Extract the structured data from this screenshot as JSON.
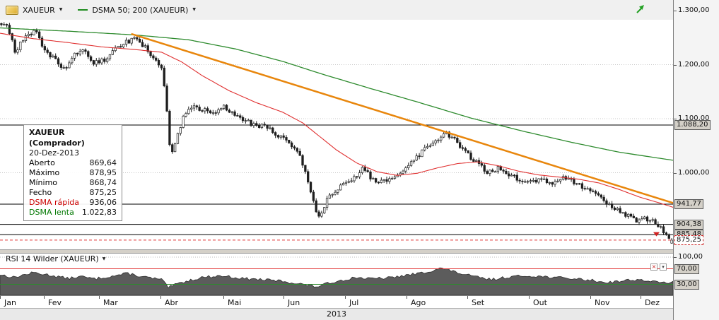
{
  "toolbar": {
    "symbol": "XAUEUR",
    "indicator": "DSMA 50; 200 (XAUEUR)"
  },
  "tooltip": {
    "title": "XAUEUR (Comprador)",
    "date": "20-Dez-2013",
    "rows": [
      {
        "label": "Aberto",
        "value": "869,64",
        "color": "#000000"
      },
      {
        "label": "Máximo",
        "value": "878,95",
        "color": "#000000"
      },
      {
        "label": "Mínimo",
        "value": "868,74",
        "color": "#000000"
      },
      {
        "label": "Fecho",
        "value": "875,25",
        "color": "#000000"
      },
      {
        "label": "DSMA rápida",
        "value": "936,06",
        "color": "#cc0000"
      },
      {
        "label": "DSMA lenta",
        "value": "1.022,83",
        "color": "#007700"
      }
    ]
  },
  "rsi_panel": {
    "label": "RSI 14 Wilder (XAUEUR)"
  },
  "x_axis": {
    "year": "2013"
  },
  "chart_data": {
    "type": "candlestick",
    "symbol": "XAUEUR",
    "title": "XAUEUR daily candles with DSMA 50/200, descending trendline and RSI 14 Wilder, year 2013",
    "candle_count": 248,
    "last_candle": {
      "open": 869.64,
      "high": 878.95,
      "low": 868.74,
      "close": 875.25
    },
    "dsma_fast_last": 936.06,
    "dsma_slow_last": 1022.83,
    "y_ticks": [
      {
        "label": "1.300,00",
        "value": 1300
      },
      {
        "label": "1.200,00",
        "value": 1200
      },
      {
        "label": "1.100,00",
        "value": 1100
      },
      {
        "label": "1.000,00",
        "value": 1000
      }
    ],
    "level_lines": [
      {
        "label": "1.088,20",
        "value": 1088.2,
        "style": "solid-black"
      },
      {
        "label": "941,77",
        "value": 941.77,
        "style": "solid-black"
      },
      {
        "label": "904,38",
        "value": 904.38,
        "style": "solid-black"
      },
      {
        "label": "885,48",
        "value": 885.48,
        "style": "solid-black"
      },
      {
        "label": "875,25",
        "value": 875.25,
        "style": "dashed-red"
      }
    ],
    "price_path": [
      [
        0.0,
        1276
      ],
      [
        0.01,
        1272
      ],
      [
        0.021,
        1220
      ],
      [
        0.032,
        1248
      ],
      [
        0.05,
        1264
      ],
      [
        0.063,
        1232
      ],
      [
        0.079,
        1209
      ],
      [
        0.095,
        1190
      ],
      [
        0.11,
        1222
      ],
      [
        0.121,
        1228
      ],
      [
        0.137,
        1203
      ],
      [
        0.153,
        1208
      ],
      [
        0.168,
        1225
      ],
      [
        0.184,
        1240
      ],
      [
        0.2,
        1247
      ],
      [
        0.21,
        1238
      ],
      [
        0.226,
        1216
      ],
      [
        0.24,
        1196
      ],
      [
        0.247,
        1110
      ],
      [
        0.253,
        1026
      ],
      [
        0.261,
        1064
      ],
      [
        0.272,
        1104
      ],
      [
        0.284,
        1123
      ],
      [
        0.3,
        1117
      ],
      [
        0.316,
        1113
      ],
      [
        0.332,
        1121
      ],
      [
        0.347,
        1108
      ],
      [
        0.363,
        1097
      ],
      [
        0.379,
        1085
      ],
      [
        0.395,
        1088
      ],
      [
        0.411,
        1069
      ],
      [
        0.426,
        1058
      ],
      [
        0.442,
        1040
      ],
      [
        0.455,
        994
      ],
      [
        0.465,
        948
      ],
      [
        0.474,
        916
      ],
      [
        0.484,
        946
      ],
      [
        0.497,
        966
      ],
      [
        0.511,
        977
      ],
      [
        0.526,
        992
      ],
      [
        0.539,
        1006
      ],
      [
        0.553,
        990
      ],
      [
        0.568,
        982
      ],
      [
        0.584,
        990
      ],
      [
        0.6,
        1006
      ],
      [
        0.616,
        1022
      ],
      [
        0.632,
        1044
      ],
      [
        0.647,
        1060
      ],
      [
        0.661,
        1073
      ],
      [
        0.674,
        1064
      ],
      [
        0.686,
        1046
      ],
      [
        0.7,
        1029
      ],
      [
        0.714,
        1012
      ],
      [
        0.726,
        999
      ],
      [
        0.742,
        1008
      ],
      [
        0.758,
        995
      ],
      [
        0.774,
        986
      ],
      [
        0.789,
        982
      ],
      [
        0.805,
        990
      ],
      [
        0.821,
        982
      ],
      [
        0.837,
        990
      ],
      [
        0.853,
        982
      ],
      [
        0.868,
        973
      ],
      [
        0.884,
        964
      ],
      [
        0.9,
        947
      ],
      [
        0.916,
        934
      ],
      [
        0.932,
        921
      ],
      [
        0.947,
        912
      ],
      [
        0.96,
        917
      ],
      [
        0.974,
        908
      ],
      [
        0.984,
        898
      ],
      [
        0.995,
        884
      ],
      [
        1.0,
        875
      ]
    ],
    "sma_fast": [
      [
        0.0,
        1258
      ],
      [
        0.05,
        1248
      ],
      [
        0.1,
        1241
      ],
      [
        0.15,
        1233
      ],
      [
        0.2,
        1228
      ],
      [
        0.24,
        1223
      ],
      [
        0.27,
        1205
      ],
      [
        0.3,
        1180
      ],
      [
        0.34,
        1152
      ],
      [
        0.38,
        1130
      ],
      [
        0.42,
        1112
      ],
      [
        0.45,
        1092
      ],
      [
        0.48,
        1062
      ],
      [
        0.5,
        1042
      ],
      [
        0.53,
        1018
      ],
      [
        0.56,
        1002
      ],
      [
        0.59,
        995
      ],
      [
        0.62,
        999
      ],
      [
        0.65,
        1009
      ],
      [
        0.68,
        1017
      ],
      [
        0.71,
        1020
      ],
      [
        0.74,
        1013
      ],
      [
        0.77,
        1003
      ],
      [
        0.8,
        996
      ],
      [
        0.83,
        992
      ],
      [
        0.86,
        988
      ],
      [
        0.89,
        981
      ],
      [
        0.92,
        969
      ],
      [
        0.95,
        955
      ],
      [
        0.98,
        944
      ],
      [
        1.0,
        936
      ]
    ],
    "sma_slow": [
      [
        0.0,
        1268
      ],
      [
        0.1,
        1262
      ],
      [
        0.2,
        1255
      ],
      [
        0.28,
        1246
      ],
      [
        0.35,
        1229
      ],
      [
        0.42,
        1206
      ],
      [
        0.48,
        1182
      ],
      [
        0.55,
        1156
      ],
      [
        0.62,
        1131
      ],
      [
        0.7,
        1101
      ],
      [
        0.78,
        1076
      ],
      [
        0.85,
        1056
      ],
      [
        0.92,
        1038
      ],
      [
        1.0,
        1023
      ]
    ],
    "trendline": {
      "from": [
        0.195,
        1257
      ],
      "to": [
        1.0,
        944
      ]
    },
    "sell_marker_price": 890,
    "rsi": {
      "overbought": 70,
      "oversold": 30,
      "ticks": [
        {
          "label": "100,00",
          "value": 100,
          "boxed": false
        },
        {
          "label": "70,00",
          "value": 70,
          "boxed": true
        },
        {
          "label": "30,00",
          "value": 30,
          "boxed": true
        }
      ],
      "path": [
        [
          0.0,
          55
        ],
        [
          0.02,
          48
        ],
        [
          0.05,
          60
        ],
        [
          0.08,
          52
        ],
        [
          0.1,
          45
        ],
        [
          0.12,
          50
        ],
        [
          0.14,
          44
        ],
        [
          0.17,
          52
        ],
        [
          0.19,
          58
        ],
        [
          0.21,
          50
        ],
        [
          0.24,
          42
        ],
        [
          0.25,
          22
        ],
        [
          0.27,
          35
        ],
        [
          0.3,
          48
        ],
        [
          0.33,
          52
        ],
        [
          0.36,
          45
        ],
        [
          0.39,
          42
        ],
        [
          0.42,
          38
        ],
        [
          0.45,
          30
        ],
        [
          0.47,
          24
        ],
        [
          0.5,
          38
        ],
        [
          0.53,
          48
        ],
        [
          0.55,
          44
        ],
        [
          0.58,
          47
        ],
        [
          0.6,
          52
        ],
        [
          0.63,
          60
        ],
        [
          0.655,
          72
        ],
        [
          0.67,
          65
        ],
        [
          0.69,
          55
        ],
        [
          0.71,
          48
        ],
        [
          0.73,
          42
        ],
        [
          0.76,
          50
        ],
        [
          0.79,
          52
        ],
        [
          0.82,
          48
        ],
        [
          0.85,
          45
        ],
        [
          0.88,
          40
        ],
        [
          0.9,
          35
        ],
        [
          0.92,
          38
        ],
        [
          0.94,
          42
        ],
        [
          0.96,
          40
        ],
        [
          0.98,
          34
        ],
        [
          1.0,
          36
        ]
      ]
    },
    "months": [
      {
        "label": "Jan",
        "t": 0.0
      },
      {
        "label": "Fev",
        "t": 0.065
      },
      {
        "label": "Mar",
        "t": 0.147
      },
      {
        "label": "Abr",
        "t": 0.238
      },
      {
        "label": "Mai",
        "t": 0.332
      },
      {
        "label": "Jun",
        "t": 0.421
      },
      {
        "label": "Jul",
        "t": 0.513
      },
      {
        "label": "Ago",
        "t": 0.604
      },
      {
        "label": "Set",
        "t": 0.694
      },
      {
        "label": "Out",
        "t": 0.786
      },
      {
        "label": "Nov",
        "t": 0.877
      },
      {
        "label": "Dez",
        "t": 0.952
      }
    ],
    "colors": {
      "bull": "#ffffff",
      "bear": "#1f1f1f",
      "wick": "#1f1f1f",
      "sma_fast": "#e03030",
      "sma_slow": "#2e8b2e",
      "trend": "#e8860c",
      "levels": "#000000",
      "current_line": "#e03030",
      "grid": "#c9c9c9",
      "rsi_fill": "#5c5c5c"
    }
  }
}
